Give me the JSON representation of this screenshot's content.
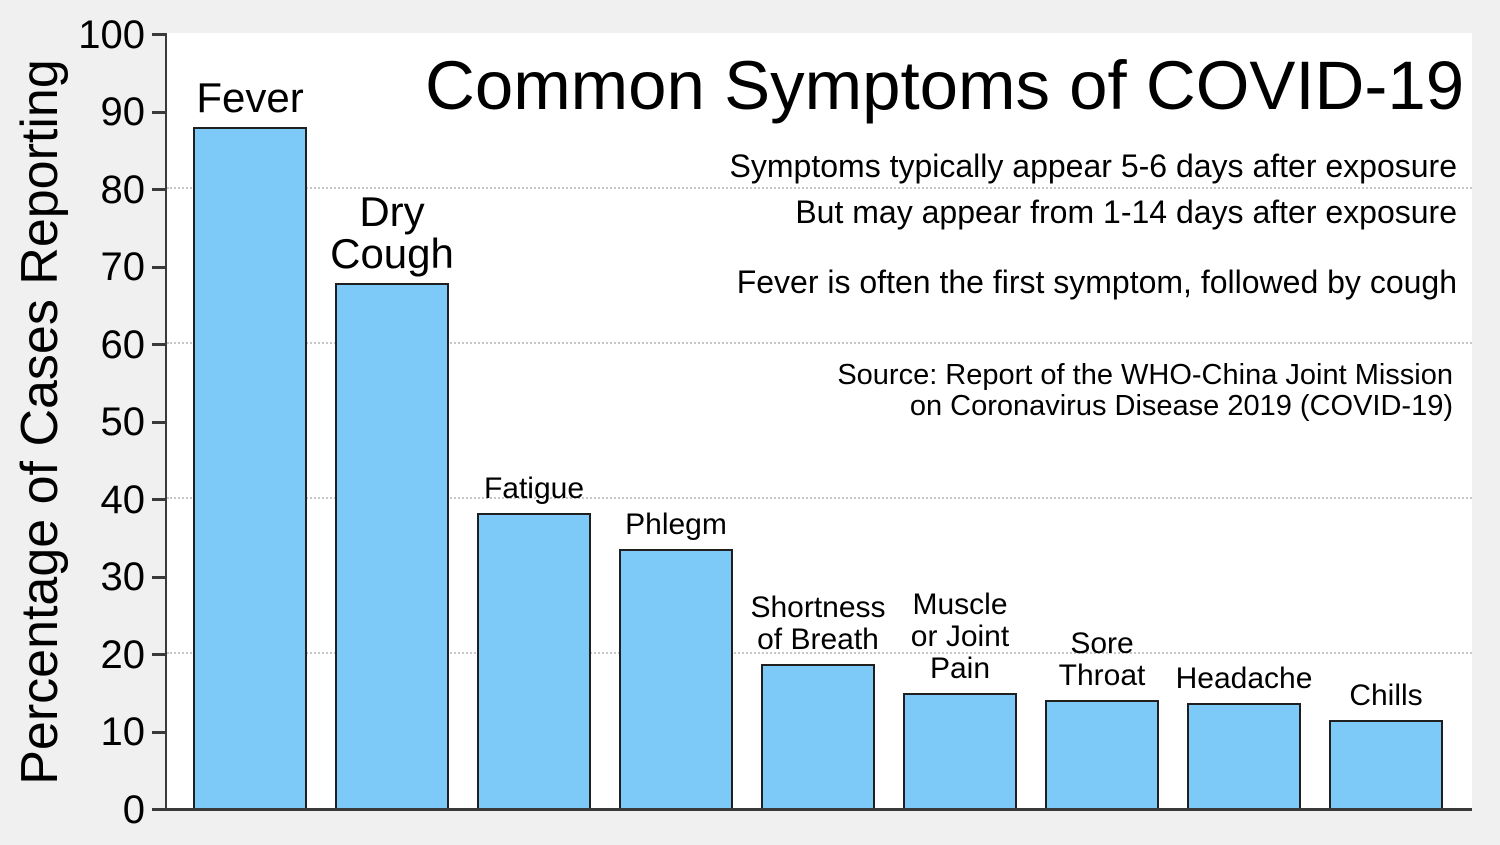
{
  "title": "Common Symptoms of COVID-19",
  "annotations": {
    "line1": "Symptoms typically appear 5-6 days after exposure",
    "line2": "But may appear from 1-14 days after exposure",
    "line3": "Fever is often the first symptom, followed by cough",
    "source_line1": "Source: Report of the WHO-China Joint Mission",
    "source_line2": "on Coronavirus Disease 2019 (COVID-19)"
  },
  "chart_data": {
    "type": "bar",
    "title": "Common Symptoms of COVID-19",
    "xlabel": "",
    "ylabel": "Percentage of Cases Reporting",
    "ylim": [
      0,
      100
    ],
    "yticks": [
      0,
      10,
      20,
      30,
      40,
      50,
      60,
      70,
      80,
      90,
      100
    ],
    "gridlines_at": [
      20,
      40,
      60,
      80
    ],
    "grid_style": "horizontal dotted",
    "legend_position": "none",
    "categories": [
      "Fever",
      "Dry Cough",
      "Fatigue",
      "Phlegm",
      "Shortness of Breath",
      "Muscle or Joint Pain",
      "Sore Throat",
      "Headache",
      "Chills"
    ],
    "values": [
      87.9,
      67.7,
      38.1,
      33.4,
      18.6,
      14.8,
      13.9,
      13.6,
      11.4
    ],
    "bar_labels": [
      "Fever",
      "Dry\nCough",
      "Fatigue",
      "Phlegm",
      "Shortness\nof Breath",
      "Muscle\nor Joint\nPain",
      "Sore\nThroat",
      "Headache",
      "Chills"
    ],
    "big_labels": [
      true,
      true,
      false,
      false,
      false,
      false,
      false,
      false,
      false
    ],
    "colors": {
      "bar_fill": "#7DC9F8",
      "bar_edge": "#1f1f1f",
      "axis": "#3a3a3a",
      "gridline": "#c6c6c6",
      "plot_background": "#ffffff",
      "figure_background": "#f0f0f0",
      "text": "#000000"
    }
  }
}
